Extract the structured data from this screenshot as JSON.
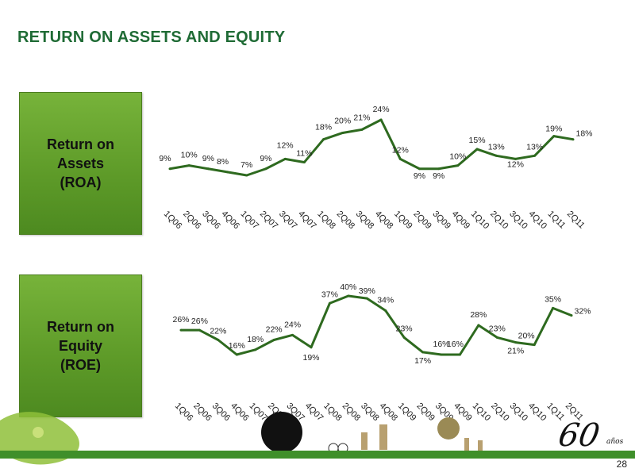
{
  "page": {
    "title": "RETURN ON ASSETS AND EQUITY",
    "page_number": "28",
    "logo_text": "60",
    "logo_subtext": "años"
  },
  "colors": {
    "title": "#1f6b35",
    "line": "#2e6a1f",
    "box": "#6aa832",
    "strip": "#3f8f2a"
  },
  "chart_data": [
    {
      "type": "line",
      "box_label": "Return on\nAssets\n(ROA)",
      "categories": [
        "1Q06",
        "2Q06",
        "3Q06",
        "4Q06",
        "1Q07",
        "2Q07",
        "3Q07",
        "4Q07",
        "1Q08",
        "2Q08",
        "3Q08",
        "4Q08",
        "1Q09",
        "2Q09",
        "3Q09",
        "4Q09",
        "1Q10",
        "2Q10",
        "3Q10",
        "4Q10",
        "1Q11",
        "2Q11"
      ],
      "values": [
        9,
        10,
        9,
        8,
        7,
        9,
        12,
        11,
        18,
        20,
        21,
        24,
        12,
        9,
        9,
        10,
        15,
        13,
        12,
        13,
        19,
        18
      ],
      "point_labels": [
        "9%",
        "10%",
        "9%",
        "8%",
        "7%",
        "9%",
        "12%",
        "11%",
        "18%",
        "20%",
        "21%",
        "24%",
        "12%",
        "9%",
        "9%",
        "10%",
        "15%",
        "13%",
        "12%",
        "13%",
        "19%",
        "18%"
      ],
      "unit": "%"
    },
    {
      "type": "line",
      "box_label": "Return on\nEquity\n(ROE)",
      "categories": [
        "1Q06",
        "2Q06",
        "3Q06",
        "4Q06",
        "1Q07",
        "2Q07",
        "3Q07",
        "4Q07",
        "1Q08",
        "2Q08",
        "3Q08",
        "4Q08",
        "1Q09",
        "2Q09",
        "3Q09",
        "4Q09",
        "1Q10",
        "2Q10",
        "3Q10",
        "4Q10",
        "1Q11",
        "2Q11"
      ],
      "values": [
        26,
        26,
        22,
        16,
        18,
        22,
        24,
        19,
        37,
        40,
        39,
        34,
        23,
        17,
        16,
        16,
        28,
        23,
        21,
        20,
        35,
        32
      ],
      "point_labels": [
        "26%",
        "26%",
        "22%",
        "16%",
        "18%",
        "22%",
        "24%",
        "19%",
        "37%",
        "40%",
        "39%",
        "34%",
        "23%",
        "17%",
        "16%",
        "16%",
        "28%",
        "23%",
        "21%",
        "20%",
        "35%",
        "32%"
      ],
      "unit": "%"
    }
  ]
}
